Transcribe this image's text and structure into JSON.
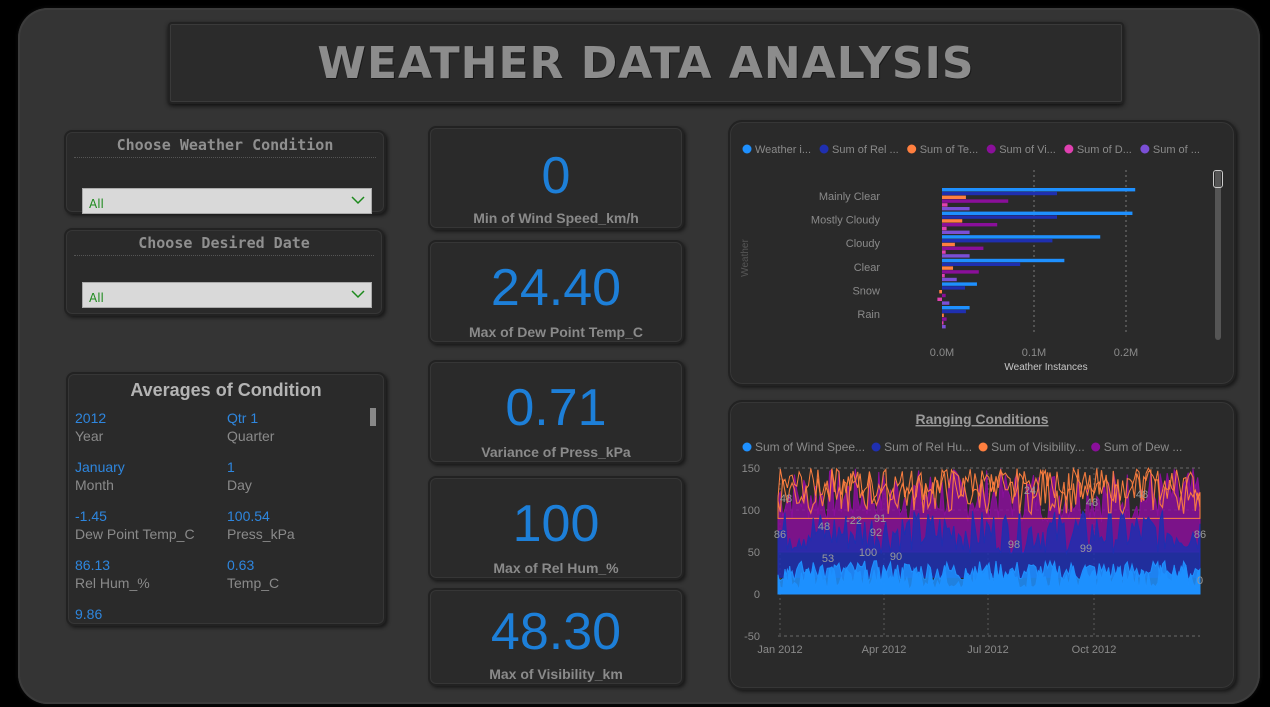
{
  "title": "WEATHER DATA ANALYSIS",
  "slicers": [
    {
      "title": "Choose Weather Condition",
      "value": "All"
    },
    {
      "title": "Choose Desired Date",
      "value": "All"
    }
  ],
  "averages": {
    "title": "Averages of Condition",
    "items": [
      {
        "value": "2012",
        "label": "Year"
      },
      {
        "value": "Qtr 1",
        "label": "Quarter"
      },
      {
        "value": "January",
        "label": "Month"
      },
      {
        "value": "1",
        "label": "Day"
      },
      {
        "value": "-1.45",
        "label": "Dew Point Temp_C"
      },
      {
        "value": "100.54",
        "label": "Press_kPa"
      },
      {
        "value": "86.13",
        "label": "Rel Hum_%"
      },
      {
        "value": "0.63",
        "label": "Temp_C"
      },
      {
        "value": "9.86",
        "label": ""
      }
    ]
  },
  "kpis": [
    {
      "value": "0",
      "label": "Min of Wind Speed_km/h"
    },
    {
      "value": "24.40",
      "label": "Max of Dew Point Temp_C"
    },
    {
      "value": "0.71",
      "label": "Variance of Press_kPa"
    },
    {
      "value": "100",
      "label": "Max of Rel Hum_%"
    },
    {
      "value": "48.30",
      "label": "Max of Visibility_km"
    }
  ],
  "colors": {
    "blue": "#1e90ff",
    "navy": "#1f2fb0",
    "orange": "#ff7f3f",
    "purple": "#8a0f9a",
    "pink": "#e040b0",
    "violet": "#7b4fd6",
    "kpi_value": "#1d7fd8",
    "accent_text": "#2e86de"
  },
  "chart_data": [
    {
      "type": "bar",
      "orientation": "horizontal",
      "ylabel": "Weather",
      "xlabel": "Weather Instances",
      "xticks": [
        "0.0M",
        "0.1M",
        "0.2M"
      ],
      "xlim": [
        0,
        0.25
      ],
      "legend_position": "top",
      "categories": [
        "Mainly Clear",
        "Mostly Cloudy",
        "Cloudy",
        "Clear",
        "Snow",
        "Rain"
      ],
      "series": [
        {
          "name": "Weather i...",
          "color": "#1e90ff",
          "values": [
            0.21,
            0.207,
            0.172,
            0.133,
            0.038,
            0.03
          ]
        },
        {
          "name": "Sum of Rel ...",
          "color": "#1f2fb0",
          "values": [
            0.125,
            0.125,
            0.12,
            0.085,
            0.025,
            0.026
          ]
        },
        {
          "name": "Sum of Te...",
          "color": "#ff7f3f",
          "values": [
            0.026,
            0.022,
            0.014,
            0.012,
            -0.003,
            0.002
          ]
        },
        {
          "name": "Sum of Vi...",
          "color": "#8a0f9a",
          "values": [
            0.072,
            0.06,
            0.045,
            0.04,
            0.004,
            0.005
          ]
        },
        {
          "name": "Sum of D...",
          "color": "#e040b0",
          "values": [
            0.006,
            0.005,
            0.004,
            0.003,
            -0.005,
            0.001
          ]
        },
        {
          "name": "Sum of ...",
          "color": "#7b4fd6",
          "values": [
            0.03,
            0.03,
            0.03,
            0.016,
            0.008,
            0.004
          ]
        }
      ]
    },
    {
      "type": "area",
      "title": "Ranging Conditions",
      "legend_position": "top",
      "x_ticks": [
        "Jan 2012",
        "Apr 2012",
        "Jul 2012",
        "Oct 2012"
      ],
      "ylim": [
        -50,
        150
      ],
      "yticks": [
        150,
        100,
        50,
        0,
        -50
      ],
      "series": [
        {
          "name": "Sum of Wind Spee...",
          "color": "#1e90ff",
          "range": [
            0,
            40
          ]
        },
        {
          "name": "Sum of Rel Hu...",
          "color": "#1f2fb0",
          "range": [
            20,
            100
          ]
        },
        {
          "name": "Sum of Visibility...",
          "color": "#ff7f3f",
          "range": [
            90,
            150
          ]
        },
        {
          "name": "Sum of Dew ...",
          "color": "#8a0f9a",
          "range": [
            50,
            150
          ]
        }
      ],
      "data_labels": [
        "48",
        "86",
        "53",
        "48",
        "-22",
        "91",
        "92",
        "100",
        "90",
        "24",
        "98",
        "48",
        "99",
        "48",
        "86",
        "0"
      ]
    }
  ]
}
